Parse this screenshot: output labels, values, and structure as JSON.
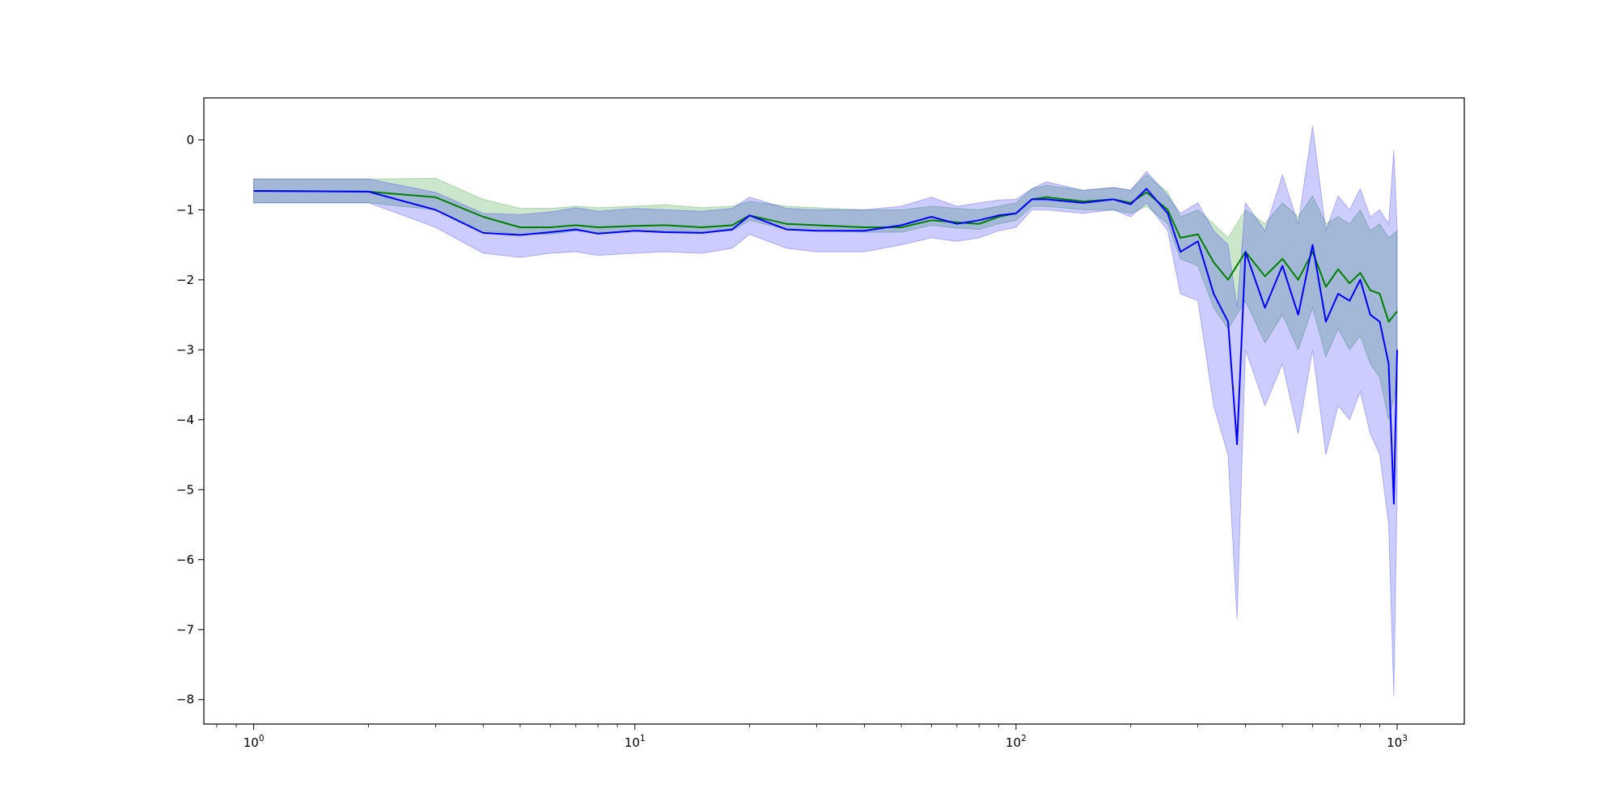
{
  "chart_data": {
    "type": "line",
    "title": "",
    "xlabel": "",
    "ylabel": "",
    "xscale": "log",
    "xlim": [
      0.74,
      1500
    ],
    "ylim": [
      -8.35,
      0.6
    ],
    "grid": false,
    "legend": "none",
    "x_ticks": [
      {
        "value": 1,
        "base": "10",
        "exp": "0"
      },
      {
        "value": 10,
        "base": "10",
        "exp": "1"
      },
      {
        "value": 100,
        "base": "10",
        "exp": "2"
      },
      {
        "value": 1000,
        "base": "10",
        "exp": "3"
      }
    ],
    "y_ticks": [
      {
        "value": 0,
        "label": "0"
      },
      {
        "value": -1,
        "label": "−1"
      },
      {
        "value": -2,
        "label": "−2"
      },
      {
        "value": -3,
        "label": "−3"
      },
      {
        "value": -4,
        "label": "−4"
      },
      {
        "value": -5,
        "label": "−5"
      },
      {
        "value": -6,
        "label": "−6"
      },
      {
        "value": -7,
        "label": "−7"
      },
      {
        "value": -8,
        "label": "−8"
      }
    ],
    "series": [
      {
        "color": "#008000",
        "band_color": "#008000",
        "x": [
          1,
          2,
          3,
          4,
          5,
          6,
          7,
          8,
          10,
          12,
          15,
          18,
          20,
          25,
          30,
          40,
          50,
          60,
          70,
          80,
          90,
          100,
          110,
          120,
          150,
          180,
          200,
          220,
          250,
          270,
          300,
          330,
          360,
          400,
          450,
          500,
          550,
          600,
          650,
          700,
          750,
          800,
          850,
          900,
          950,
          1000
        ],
        "values": [
          -0.73,
          -0.74,
          -0.82,
          -1.1,
          -1.25,
          -1.25,
          -1.22,
          -1.25,
          -1.23,
          -1.22,
          -1.25,
          -1.22,
          -1.08,
          -1.2,
          -1.22,
          -1.25,
          -1.25,
          -1.15,
          -1.18,
          -1.2,
          -1.1,
          -1.05,
          -0.85,
          -0.82,
          -0.88,
          -0.85,
          -0.9,
          -0.75,
          -1.0,
          -1.4,
          -1.35,
          -1.75,
          -2.0,
          -1.6,
          -1.95,
          -1.7,
          -2.0,
          -1.6,
          -2.1,
          -1.85,
          -2.05,
          -1.9,
          -2.15,
          -2.2,
          -2.6,
          -2.45
        ],
        "lower": [
          -0.9,
          -0.9,
          -1.0,
          -1.3,
          -1.35,
          -1.35,
          -1.3,
          -1.33,
          -1.3,
          -1.3,
          -1.32,
          -1.3,
          -1.15,
          -1.28,
          -1.3,
          -1.32,
          -1.32,
          -1.22,
          -1.26,
          -1.28,
          -1.2,
          -1.15,
          -0.95,
          -0.95,
          -1.0,
          -1.0,
          -1.05,
          -0.95,
          -1.2,
          -1.7,
          -1.8,
          -2.4,
          -2.7,
          -2.3,
          -2.9,
          -2.5,
          -3.0,
          -2.4,
          -3.1,
          -2.7,
          -3.0,
          -2.8,
          -3.2,
          -3.4,
          -4.0,
          -3.5
        ],
        "upper": [
          -0.56,
          -0.56,
          -0.55,
          -0.85,
          -0.98,
          -0.98,
          -0.95,
          -0.97,
          -0.95,
          -0.93,
          -0.97,
          -0.95,
          -0.88,
          -0.95,
          -0.97,
          -1.0,
          -1.0,
          -0.95,
          -0.98,
          -1.0,
          -0.95,
          -0.9,
          -0.7,
          -0.65,
          -0.72,
          -0.68,
          -0.72,
          -0.5,
          -0.75,
          -1.1,
          -1.0,
          -1.2,
          -1.4,
          -1.0,
          -1.2,
          -0.9,
          -1.1,
          -0.8,
          -1.2,
          -1.1,
          -1.2,
          -1.0,
          -1.3,
          -1.2,
          -1.4,
          -1.3
        ]
      },
      {
        "color": "#0000ff",
        "band_color": "#0000ff",
        "x": [
          1,
          2,
          3,
          4,
          5,
          6,
          7,
          8,
          10,
          12,
          15,
          18,
          20,
          25,
          30,
          40,
          50,
          60,
          70,
          80,
          90,
          100,
          110,
          120,
          150,
          180,
          200,
          220,
          250,
          270,
          300,
          330,
          360,
          380,
          400,
          450,
          500,
          550,
          600,
          650,
          700,
          750,
          800,
          850,
          900,
          950,
          980,
          1000
        ],
        "values": [
          -0.73,
          -0.74,
          -1.0,
          -1.33,
          -1.36,
          -1.32,
          -1.28,
          -1.34,
          -1.3,
          -1.32,
          -1.33,
          -1.28,
          -1.08,
          -1.28,
          -1.3,
          -1.3,
          -1.22,
          -1.1,
          -1.2,
          -1.15,
          -1.08,
          -1.05,
          -0.85,
          -0.85,
          -0.9,
          -0.85,
          -0.92,
          -0.7,
          -1.05,
          -1.6,
          -1.45,
          -2.2,
          -2.6,
          -4.35,
          -1.6,
          -2.4,
          -1.8,
          -2.5,
          -1.5,
          -2.6,
          -2.2,
          -2.3,
          -2.0,
          -2.5,
          -2.6,
          -3.2,
          -5.2,
          -3.0
        ],
        "lower": [
          -0.9,
          -0.9,
          -1.25,
          -1.62,
          -1.68,
          -1.62,
          -1.6,
          -1.65,
          -1.62,
          -1.6,
          -1.62,
          -1.55,
          -1.35,
          -1.55,
          -1.6,
          -1.6,
          -1.5,
          -1.4,
          -1.45,
          -1.4,
          -1.3,
          -1.25,
          -1.0,
          -1.0,
          -1.05,
          -1.0,
          -1.1,
          -0.9,
          -1.3,
          -2.2,
          -2.3,
          -3.8,
          -4.5,
          -6.85,
          -3.0,
          -3.8,
          -3.2,
          -4.2,
          -3.0,
          -4.5,
          -3.8,
          -4.0,
          -3.6,
          -4.2,
          -4.5,
          -5.5,
          -7.95,
          -5.0
        ],
        "upper": [
          -0.56,
          -0.56,
          -0.75,
          -1.05,
          -1.07,
          -1.03,
          -0.97,
          -1.02,
          -0.98,
          -1.0,
          -1.02,
          -0.98,
          -0.82,
          -0.98,
          -1.0,
          -1.0,
          -0.95,
          -0.82,
          -0.95,
          -0.9,
          -0.86,
          -0.85,
          -0.7,
          -0.6,
          -0.72,
          -0.68,
          -0.72,
          -0.45,
          -0.8,
          -1.05,
          -0.9,
          -1.3,
          -1.5,
          -2.4,
          -0.9,
          -1.3,
          -0.5,
          -1.2,
          0.2,
          -1.3,
          -0.8,
          -1.0,
          -0.7,
          -1.1,
          -1.0,
          -1.2,
          -0.15,
          -1.3
        ]
      }
    ]
  }
}
